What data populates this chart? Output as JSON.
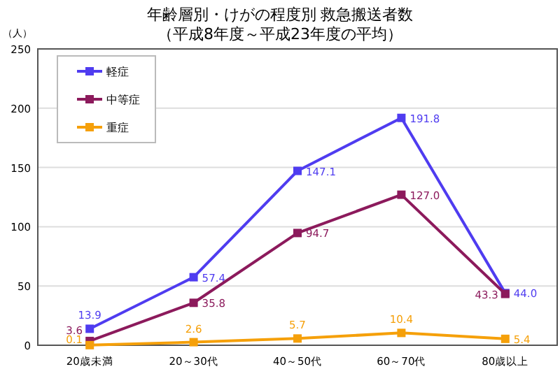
{
  "chart_data": {
    "type": "line",
    "title": "年齢層別・けがの程度別 救急搬送者数",
    "subtitle": "（平成8年度～平成23年度の平均）",
    "ylabel": "（人）",
    "categories": [
      "20歳未満",
      "20～30代",
      "40～50代",
      "60～70代",
      "80歳以上"
    ],
    "series": [
      {
        "name": "軽症",
        "color": "#4f3cf0",
        "values": [
          13.9,
          57.4,
          147.1,
          191.8,
          44.0
        ],
        "value_labels": [
          "13.9",
          "57.4",
          "147.1",
          "191.8",
          "44.0"
        ]
      },
      {
        "name": "中等症",
        "color": "#8c1a5c",
        "values": [
          3.6,
          35.8,
          94.7,
          127.0,
          43.3
        ],
        "value_labels": [
          "3.6",
          "35.8",
          "94.7",
          "127.0",
          "43.3"
        ]
      },
      {
        "name": "重症",
        "color": "#f5a00a",
        "values": [
          0.1,
          2.6,
          5.7,
          10.4,
          5.4
        ],
        "value_labels": [
          "0.1",
          "2.6",
          "5.7",
          "10.4",
          "5.4"
        ]
      }
    ],
    "ylim": [
      0,
      250
    ],
    "yticks": [
      0,
      50,
      100,
      150,
      200,
      250
    ],
    "grid": "y",
    "legend": "top left",
    "marker": "square",
    "line_style": "solid"
  }
}
